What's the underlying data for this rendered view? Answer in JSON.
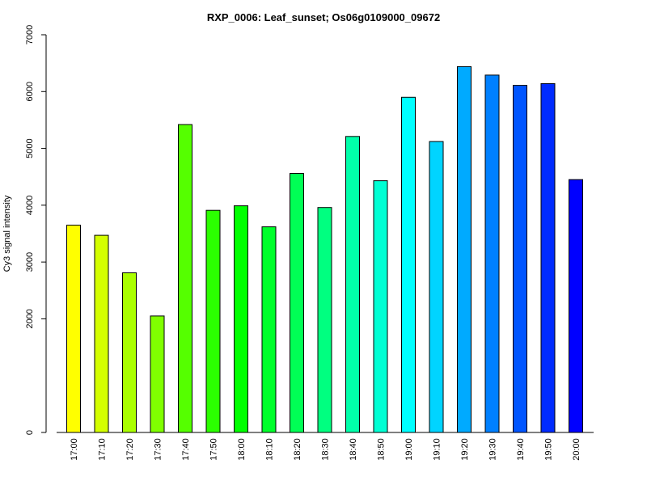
{
  "chart_data": {
    "type": "bar",
    "title": "RXP_0006: Leaf_sunset; Os06g0109000_09672",
    "xlabel": "",
    "ylabel": "Cy3 signal intensity",
    "categories": [
      "17:00",
      "17:10",
      "17:20",
      "17:30",
      "17:40",
      "17:50",
      "18:00",
      "18:10",
      "18:20",
      "18:30",
      "18:40",
      "18:50",
      "19:00",
      "19:10",
      "19:20",
      "19:30",
      "19:40",
      "19:50",
      "20:00"
    ],
    "values": [
      3650,
      3470,
      2810,
      2050,
      5420,
      3910,
      3990,
      3620,
      4560,
      3960,
      5210,
      4430,
      5900,
      5120,
      6440,
      6290,
      6110,
      6140,
      4450
    ],
    "colors": [
      "#FFFF00",
      "#D4FF00",
      "#AAFF00",
      "#80FF00",
      "#55FF00",
      "#2BFF00",
      "#00FF00",
      "#00FF2B",
      "#00FF55",
      "#00FF80",
      "#00FFAA",
      "#00FFD4",
      "#00FFFF",
      "#00D4FF",
      "#00AAFF",
      "#0080FF",
      "#0055FF",
      "#002BFF",
      "#0000FF"
    ],
    "yticks": [
      0,
      2000,
      3000,
      4000,
      5000,
      6000,
      7000
    ],
    "ylim": [
      0,
      7000
    ],
    "grid": false,
    "legend": "none"
  }
}
